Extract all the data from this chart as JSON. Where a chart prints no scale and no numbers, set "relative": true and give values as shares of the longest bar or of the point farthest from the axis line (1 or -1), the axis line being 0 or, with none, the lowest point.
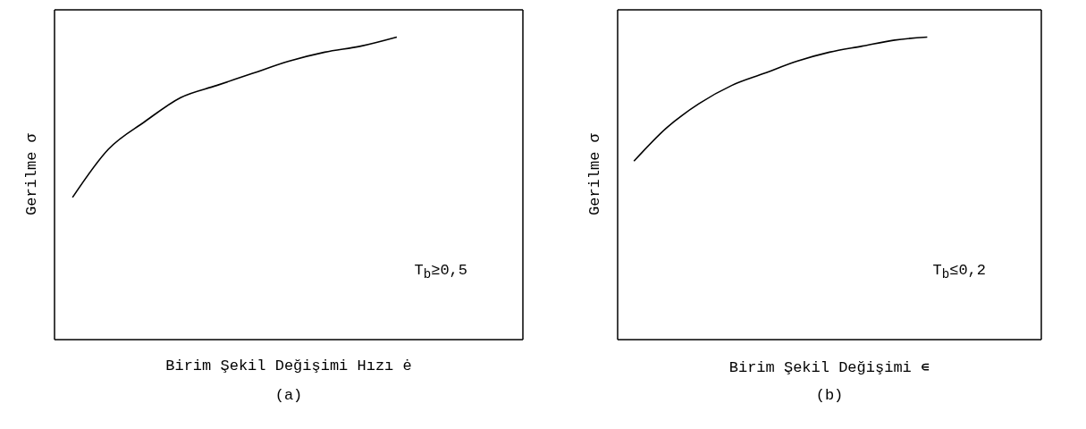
{
  "chart_data": [
    {
      "type": "line",
      "relative": true,
      "xlabel": "Birim Şekil Değişimi Hızı ė",
      "ylabel": "Gerilme σ",
      "tick_labels": false,
      "grid": false,
      "categories": [
        null,
        null,
        null,
        null,
        null,
        null,
        null,
        null,
        null,
        null,
        null,
        null,
        null
      ],
      "series": [
        {
          "color": "#000000",
          "values": [
            0.47,
            0.63,
            0.72,
            0.8,
            0.84,
            0.88,
            0.92,
            0.95,
            0.97,
            1.0,
            null,
            null,
            null
          ]
        }
      ],
      "annotations": [
        "T$_{b}$≥0,5",
        "(a)"
      ]
    },
    {
      "type": "line",
      "relative": true,
      "xlabel": "Birim Şekil Değişimi ∊",
      "ylabel": "Gerilme σ",
      "tick_labels": false,
      "grid": false,
      "categories": [
        null,
        null,
        null,
        null,
        null,
        null,
        null,
        null,
        null,
        null,
        null,
        null,
        null
      ],
      "series": [
        {
          "color": "#000000",
          "values": [
            0.59,
            0.7,
            0.78,
            0.84,
            0.88,
            0.92,
            0.95,
            0.97,
            0.99,
            1.0,
            null,
            null,
            null
          ]
        }
      ],
      "annotations": [
        "T$_{b}$≤0,2",
        "(b)"
      ]
    }
  ]
}
